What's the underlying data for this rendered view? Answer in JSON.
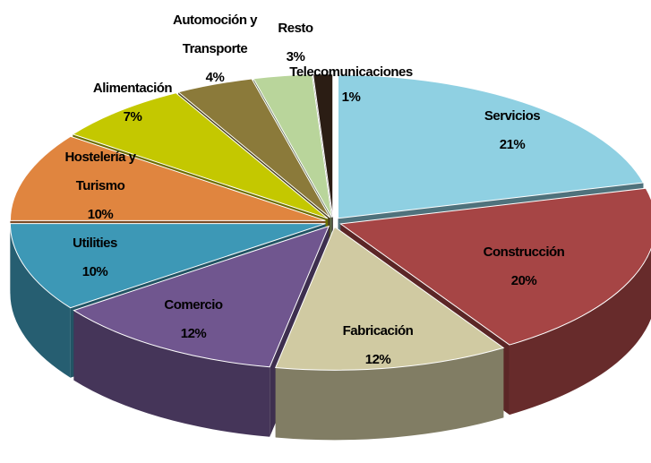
{
  "chart_data": {
    "type": "pie3d",
    "categories": [
      "Servicios",
      "Construcción",
      "Fabricación",
      "Comercio",
      "Utilities",
      "Hostelería y Turismo",
      "Alimentación",
      "Automoción y Transporte",
      "Resto",
      "Telecomunicaciones"
    ],
    "values": [
      21,
      20,
      12,
      12,
      10,
      10,
      7,
      4,
      3,
      1
    ],
    "value_labels": [
      "21%",
      "20%",
      "12%",
      "12%",
      "10%",
      "10%",
      "7%",
      "4%",
      "3%",
      "1%"
    ],
    "colors": [
      "#8fd0e2",
      "#a64545",
      "#d0caa2",
      "#70568f",
      "#3d98b6",
      "#e0853f",
      "#c4c800",
      "#8b7a3a",
      "#b9d59b",
      "#2b1d14"
    ]
  }
}
